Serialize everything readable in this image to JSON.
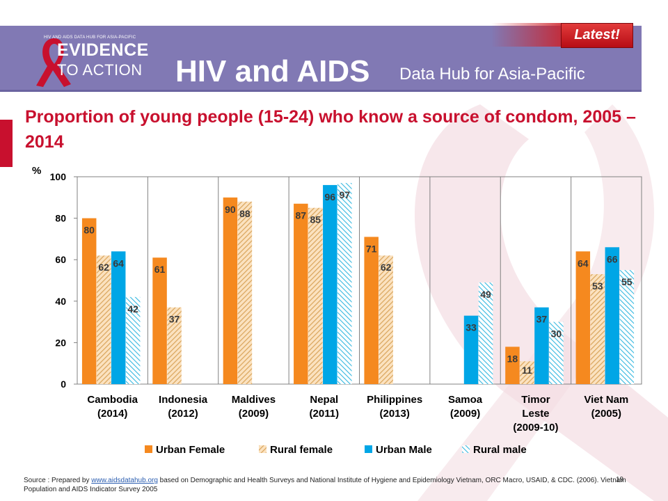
{
  "header": {
    "logo_small": "HIV AND AIDS DATA HUB FOR ASIA-PACIFIC",
    "logo_line1": "EVIDENCE",
    "logo_line2": "TO ACTION",
    "main_title": "HIV and AIDS",
    "sub_title": "Data Hub for Asia-Pacific",
    "badge": "Latest!"
  },
  "slide": {
    "title": "Proportion of young people (15-24) who know a source of condom, 2005 – 2014",
    "page_number": "19"
  },
  "source": {
    "prefix": "Source : Prepared by ",
    "link": "www.aidsdatahub.org",
    "suffix": " based on Demographic and Health Surveys and National Institute of Hygiene and Epidemiology Vietnam, ORC Macro, USAID, & CDC. (2006). Vietnam Population and AIDS Indicator Survey 2005"
  },
  "colors": {
    "urban_female": "#f5891f",
    "rural_female": "#d9a45a",
    "urban_male": "#00a6e6",
    "rural_male": "#35b8e0",
    "title_red": "#c8102e",
    "header_purple": "#8179b4"
  },
  "chart_data": {
    "type": "bar",
    "ylabel": "%",
    "ylim": [
      0,
      100
    ],
    "yticks": [
      0,
      20,
      40,
      60,
      80,
      100
    ],
    "legend_position": "bottom",
    "grid": false,
    "categories": [
      [
        "Cambodia",
        "(2014)"
      ],
      [
        "Indonesia",
        "(2012)"
      ],
      [
        "Maldives",
        "(2009)"
      ],
      [
        "Nepal",
        "(2011)"
      ],
      [
        "Philippines",
        "(2013)"
      ],
      [
        "Samoa",
        "(2009)"
      ],
      [
        "Timor",
        "Leste",
        "(2009-10)"
      ],
      [
        "Viet Nam",
        "(2005)"
      ]
    ],
    "series": [
      {
        "name": "Urban Female",
        "pattern": "solid-orange",
        "values": [
          80,
          61,
          90,
          87,
          71,
          null,
          18,
          64
        ]
      },
      {
        "name": "Rural female",
        "pattern": "hatch-orange",
        "values": [
          62,
          37,
          88,
          85,
          62,
          null,
          11,
          53
        ]
      },
      {
        "name": "Urban Male",
        "pattern": "solid-blue",
        "values": [
          64,
          null,
          null,
          96,
          null,
          33,
          37,
          66
        ]
      },
      {
        "name": "Rural male",
        "pattern": "hatch-blue",
        "values": [
          42,
          null,
          null,
          97,
          null,
          49,
          30,
          55
        ]
      }
    ]
  }
}
